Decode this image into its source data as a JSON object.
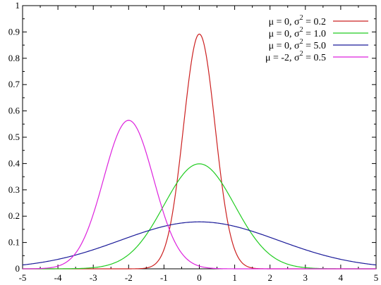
{
  "chart_data": {
    "type": "line",
    "title": "",
    "xlabel": "",
    "ylabel": "",
    "xlim": [
      -5,
      5
    ],
    "ylim": [
      0,
      1.0
    ],
    "x_ticks": [
      "-5",
      "-4",
      "-3",
      "-2",
      "-1",
      "0",
      "1",
      "2",
      "3",
      "4",
      "5"
    ],
    "y_ticks": [
      "0",
      "0.1",
      "0.2",
      "0.3",
      "0.4",
      "0.5",
      "0.6",
      "0.7",
      "0.8",
      "0.9",
      "1"
    ],
    "grid": false,
    "legend_position": "top-right",
    "series": [
      {
        "name": "μ =  0, σ2 = 0.2",
        "legend": {
          "pre": "μ =  0, σ",
          "sup": "2",
          "post": " = 0.2"
        },
        "color": "#cc2020",
        "mu": 0,
        "sigma2": 0.2,
        "x": [
          -5,
          -3,
          -2,
          -1.5,
          -1,
          -0.75,
          -0.5,
          -0.25,
          0,
          0.25,
          0.5,
          0.75,
          1,
          1.5,
          2,
          3,
          5
        ],
        "y": [
          0,
          0,
          0,
          0.003,
          0.073,
          0.219,
          0.479,
          0.762,
          0.892,
          0.762,
          0.479,
          0.219,
          0.073,
          0.003,
          0,
          0,
          0
        ]
      },
      {
        "name": "μ =  0, σ2 = 1.0",
        "legend": {
          "pre": "μ =  0, σ",
          "sup": "2",
          "post": " = 1.0"
        },
        "color": "#20cc20",
        "mu": 0,
        "sigma2": 1.0,
        "x": [
          -5,
          -4,
          -3,
          -2.5,
          -2,
          -1.5,
          -1,
          -0.5,
          0,
          0.5,
          1,
          1.5,
          2,
          2.5,
          3,
          4,
          5
        ],
        "y": [
          0,
          0.0001,
          0.004,
          0.018,
          0.054,
          0.13,
          0.242,
          0.352,
          0.399,
          0.352,
          0.242,
          0.13,
          0.054,
          0.018,
          0.004,
          0.0001,
          0
        ]
      },
      {
        "name": "μ =  0, σ2 = 5.0",
        "legend": {
          "pre": "μ =  0, σ",
          "sup": "2",
          "post": " = 5.0"
        },
        "color": "#1a1a99",
        "mu": 0,
        "sigma2": 5.0,
        "x": [
          -5,
          -4,
          -3,
          -2,
          -1,
          0,
          1,
          2,
          3,
          4,
          5
        ],
        "y": [
          0.015,
          0.036,
          0.073,
          0.12,
          0.161,
          0.178,
          0.161,
          0.12,
          0.073,
          0.036,
          0.015
        ]
      },
      {
        "name": "μ = -2, σ2 = 0.5",
        "legend": {
          "pre": "μ = -2, σ",
          "sup": "2",
          "post": " = 0.5"
        },
        "color": "#dd22dd",
        "mu": -2,
        "sigma2": 0.5,
        "x": [
          -5,
          -4,
          -3.5,
          -3,
          -2.5,
          -2,
          -1.5,
          -1,
          -0.5,
          0,
          1,
          5
        ],
        "y": [
          0,
          0.01,
          0.059,
          0.208,
          0.439,
          0.564,
          0.439,
          0.208,
          0.059,
          0.01,
          0,
          0
        ]
      }
    ]
  }
}
